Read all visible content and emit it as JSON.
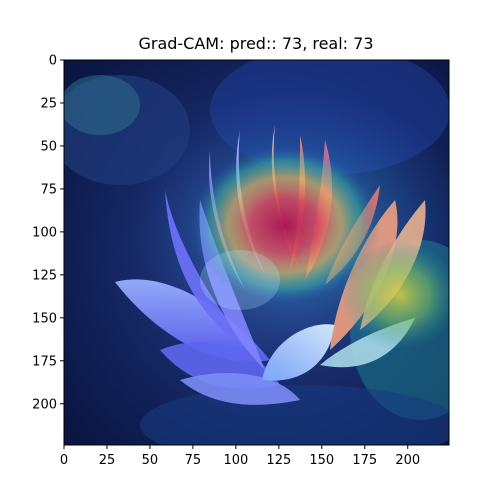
{
  "title": "Grad-CAM: pred:: 73, real: 73",
  "image_content": "lotus-flower-with-gradcam-heatmap",
  "axes": {
    "xlim": [
      0,
      224
    ],
    "ylim": [
      224,
      0
    ],
    "x_ticks": [
      {
        "value": 0,
        "label": "0"
      },
      {
        "value": 25,
        "label": "25"
      },
      {
        "value": 50,
        "label": "50"
      },
      {
        "value": 75,
        "label": "75"
      },
      {
        "value": 100,
        "label": "100"
      },
      {
        "value": 125,
        "label": "125"
      },
      {
        "value": 150,
        "label": "150"
      },
      {
        "value": 175,
        "label": "175"
      },
      {
        "value": 200,
        "label": "200"
      }
    ],
    "y_ticks": [
      {
        "value": 0,
        "label": "0"
      },
      {
        "value": 25,
        "label": "25"
      },
      {
        "value": 50,
        "label": "50"
      },
      {
        "value": 75,
        "label": "75"
      },
      {
        "value": 100,
        "label": "100"
      },
      {
        "value": 125,
        "label": "125"
      },
      {
        "value": 150,
        "label": "150"
      },
      {
        "value": 175,
        "label": "175"
      },
      {
        "value": 200,
        "label": "200"
      }
    ]
  },
  "colors": {
    "background_dark": "#0b1a4a",
    "heat_peak": "#c2185b",
    "heat_mid": "#e8c040",
    "heat_low": "#2a9d8f",
    "petal": "#6f78ff"
  }
}
